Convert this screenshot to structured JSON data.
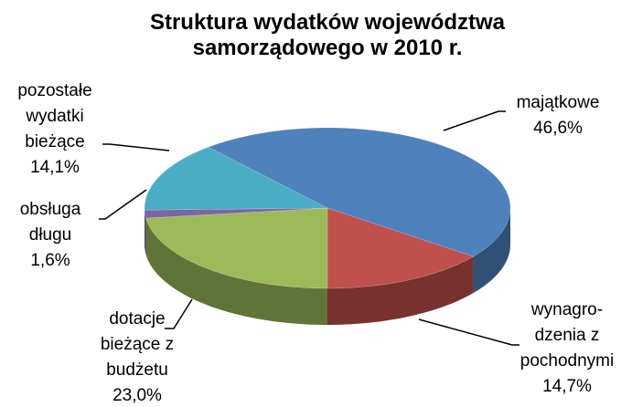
{
  "chart_data": {
    "type": "pie",
    "title": "Struktura wydatków województwa\nsamorządowego w 2010 r.",
    "categories": [
      "majątkowe",
      "wynagro-\ndzenia z\npochodnymi",
      "dotacje\nbieżące z\nbudżetu",
      "obsługa\ndługu",
      "pozostałe\nwydatki\nbieżące"
    ],
    "values": [
      46.6,
      14.7,
      23.0,
      1.6,
      14.1
    ],
    "value_labels": [
      "46,6%",
      "14,7%",
      "23,0%",
      "1,6%",
      "14,1%"
    ],
    "colors": [
      "#4f81bd",
      "#c0504d",
      "#9bbb59",
      "#8064a2",
      "#4bacc6"
    ],
    "legend": false
  }
}
